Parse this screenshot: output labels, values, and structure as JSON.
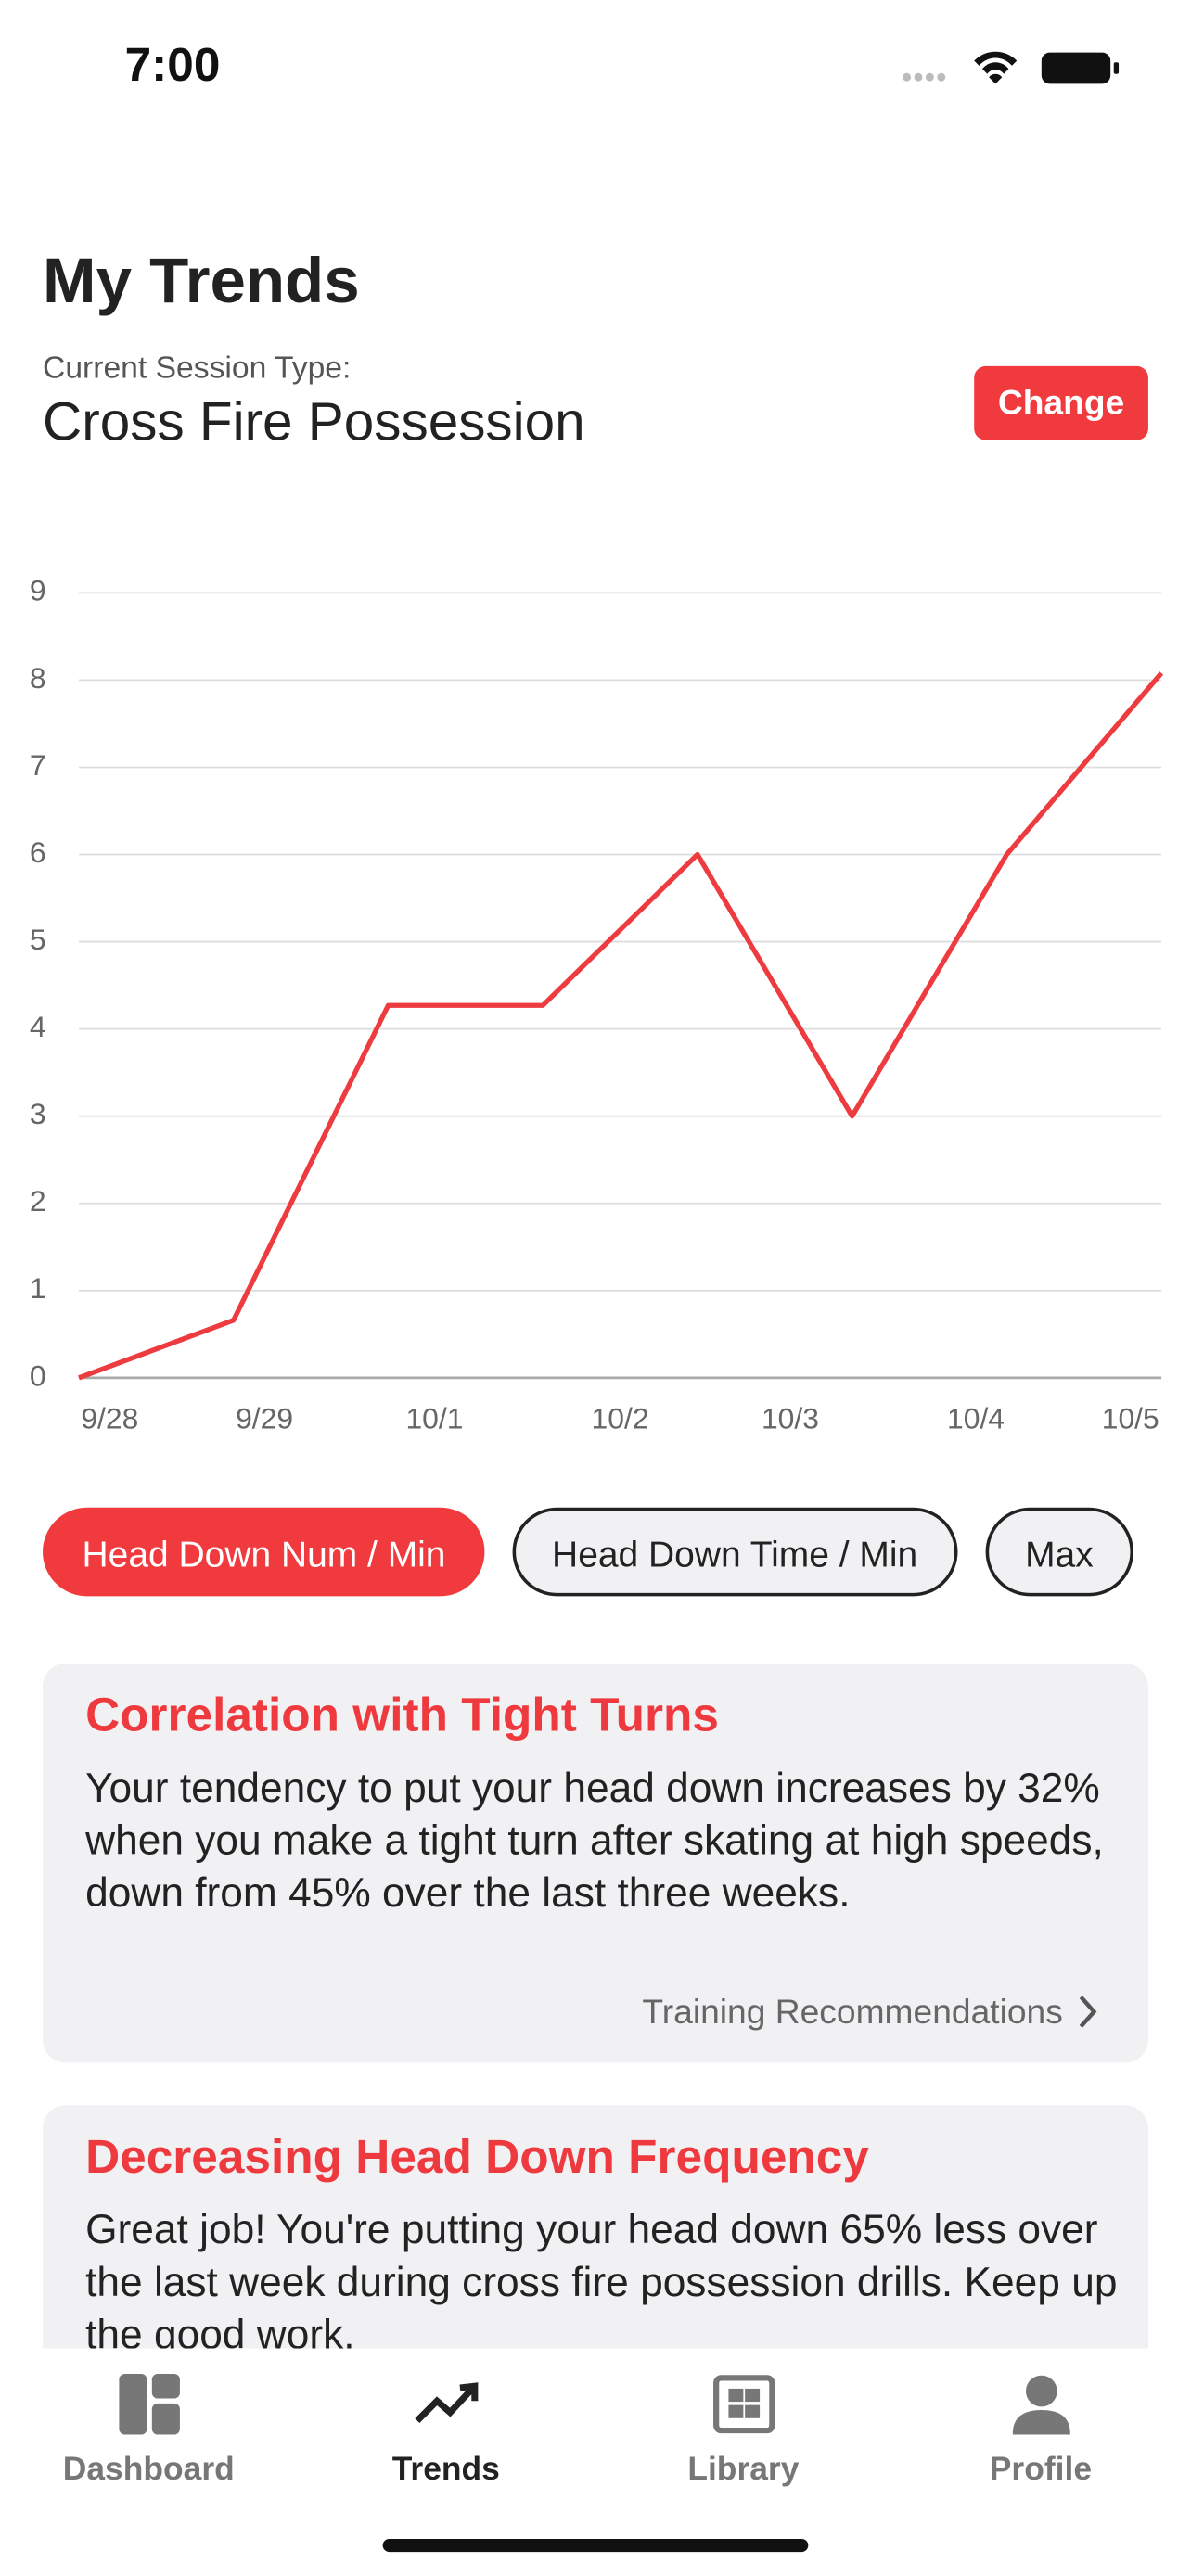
{
  "status_bar": {
    "time": "7:00"
  },
  "header": {
    "title": "My Trends",
    "session_label": "Current Session Type:",
    "session_type": "Cross Fire Possession",
    "change_button": "Change"
  },
  "chart_data": {
    "type": "line",
    "x": [
      0,
      1,
      2,
      3,
      4,
      5,
      6,
      7
    ],
    "series": [
      {
        "name": "Head Down Num / Min",
        "color": "#ee3b3f",
        "values": [
          0,
          0.66,
          4.27,
          4.27,
          6,
          3,
          6,
          8.08
        ]
      }
    ],
    "xlim": [
      0,
      7
    ],
    "xticks": [
      {
        "value": 0.2,
        "label": "9/28"
      },
      {
        "value": 1.2,
        "label": "9/29"
      },
      {
        "value": 2.3,
        "label": "10/1"
      },
      {
        "value": 3.5,
        "label": "10/2"
      },
      {
        "value": 4.6,
        "label": "10/3"
      },
      {
        "value": 5.8,
        "label": "10/4"
      },
      {
        "value": 6.8,
        "label": "10/5"
      }
    ],
    "ylim": [
      0,
      9
    ],
    "yticks": [
      0,
      1,
      2,
      3,
      4,
      5,
      6,
      7,
      8,
      9
    ],
    "grid": true
  },
  "metric_chips": [
    {
      "label": "Head Down Num / Min",
      "selected": true
    },
    {
      "label": "Head Down Time / Min",
      "selected": false
    },
    {
      "label": "Max",
      "selected": false
    }
  ],
  "cards": [
    {
      "title": "Correlation with Tight Turns",
      "body": "Your tendency to put your head down increases by 32% when you make a tight turn after skating at high speeds, down from 45% over the last three weeks.",
      "link": "Training Recommendations"
    },
    {
      "title": "Decreasing Head Down Frequency",
      "body": "Great job! You're putting your head down 65% less over the last week during cross fire possession drills. Keep up the good work."
    }
  ],
  "tab_bar": [
    {
      "label": "Dashboard",
      "active": false
    },
    {
      "label": "Trends",
      "active": true
    },
    {
      "label": "Library",
      "active": false
    },
    {
      "label": "Profile",
      "active": false
    }
  ]
}
